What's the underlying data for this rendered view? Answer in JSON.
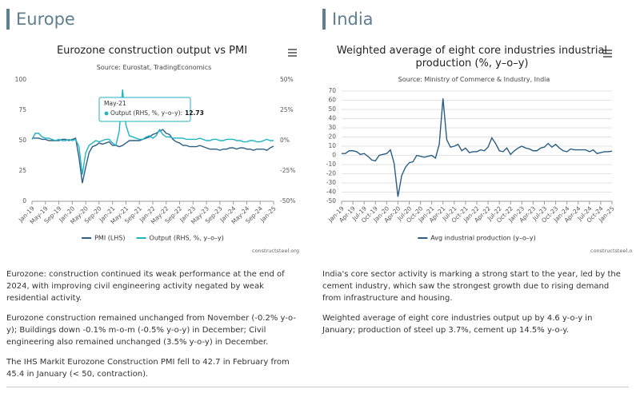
{
  "sections": [
    {
      "heading": "Europe",
      "paragraphs": [
        "Eurozone: construction continued its weak performance at the end of 2024, with improving civil engineering activity negated by weak residential activity.",
        "Eurozone construction remained unchanged from November (-0.2% y-o-y); Buildings down -0.1% m-o-m (-0.5% y-o-y) in December; Civil engineering also remained unchanged (3.5% y-o-y) in December.",
        "The IHS Markit Eurozone Construction PMI fell to 42.7 in February from 45.4 in January (< 50, contraction)."
      ]
    },
    {
      "heading": "India",
      "paragraphs": [
        "India's core sector activity is marking a strong start to the year, led by the cement industry, which saw the strongest growth due to rising demand from infrastructure and housing.",
        "Weighted average of eight core industries output up by 4.6 y-o-y in January; production of steel up 3.7%, cement up 14.5% y-o-y."
      ]
    }
  ],
  "chart_data": [
    {
      "type": "line",
      "title": "Eurozone construction output vs PMI",
      "subtitle": "Source: Eurostat, TradingEconomics",
      "credit": "constructsteel.org",
      "grid": false,
      "categories": [
        "Jan-19",
        null,
        null,
        null,
        "May-19",
        null,
        null,
        null,
        "Sep-19",
        null,
        null,
        null,
        "Jan-20",
        null,
        null,
        null,
        "May-20",
        null,
        null,
        null,
        "Sep-20",
        null,
        null,
        null,
        "Jan-21",
        null,
        null,
        null,
        "May-21",
        null,
        null,
        null,
        "Sep-21",
        null,
        null,
        null,
        "Jan-22",
        null,
        null,
        null,
        "May-22",
        null,
        null,
        null,
        "Sep-22",
        null,
        null,
        null,
        "Jan-23",
        null,
        null,
        null,
        "May-23",
        null,
        null,
        null,
        "Sep-23",
        null,
        null,
        null,
        "Jan-24",
        null,
        null,
        null,
        "May-24",
        null,
        null,
        null,
        "Sep-24",
        null,
        null,
        null,
        "Jan-25"
      ],
      "ylim": [
        0,
        100
      ],
      "yticks": [
        0,
        25,
        50,
        75,
        100
      ],
      "y2lim": [
        -50,
        50
      ],
      "y2ticks": [
        {
          "value": -50,
          "label": "-50%"
        },
        {
          "value": -25,
          "label": "-25%"
        },
        {
          "value": 0,
          "label": "0%"
        },
        {
          "value": 25,
          "label": "25%"
        },
        {
          "value": 50,
          "label": "50%"
        }
      ],
      "series": [
        {
          "name": "PMI (LHS)",
          "color": "#2c5f86",
          "values": [
            52,
            52,
            52,
            51,
            51,
            50,
            50,
            50,
            50,
            51,
            51,
            50,
            51,
            52,
            36,
            15,
            28,
            40,
            45,
            46,
            48,
            47,
            48,
            49,
            46,
            46,
            45,
            46,
            48,
            50,
            50,
            50,
            50,
            51,
            52,
            53,
            55,
            56,
            58,
            59,
            56,
            55,
            51,
            49,
            48,
            46,
            46,
            45,
            45,
            45,
            46,
            45,
            44,
            43,
            43,
            43,
            42,
            43,
            43,
            44,
            44,
            43,
            44,
            44,
            43,
            43,
            42,
            43,
            43,
            43,
            42,
            44,
            45.4
          ]
        },
        {
          "name": "Output (RHS, %, y–o–y)",
          "color": "#1fb3c4",
          "axis": "y2",
          "values": [
            1,
            6,
            6,
            3,
            2,
            2,
            1,
            0,
            1,
            0,
            0,
            1,
            0,
            1,
            -5,
            -28,
            -10,
            -4,
            -2,
            0,
            -1,
            0,
            1,
            1,
            -2,
            -4,
            8,
            42,
            12.73,
            4,
            3,
            2,
            1,
            1,
            3,
            4,
            2,
            4,
            9,
            5,
            3,
            3,
            2,
            2,
            2,
            2,
            1,
            1,
            1,
            1,
            2,
            1,
            0,
            0,
            1,
            1,
            0,
            0,
            1,
            1,
            1,
            0,
            0,
            -1,
            -1,
            0,
            0,
            -1,
            -1,
            0,
            1,
            0,
            0
          ]
        }
      ],
      "tooltip": {
        "label": "Output (RHS, %, y–o–y):"
      }
    },
    {
      "type": "line",
      "title": "Weighted average of eight core industries industrial production (%, y–o–y)",
      "subtitle": "Source: Ministry of Commerce & Industry, India",
      "credit": "constructsteel.org",
      "grid": true,
      "categories": [
        "Jan-19",
        null,
        null,
        "Apr-19",
        null,
        null,
        "Jul-19",
        null,
        null,
        "Oct-19",
        null,
        null,
        "Jan-20",
        null,
        null,
        "Apr-20",
        null,
        null,
        "Jul-20",
        null,
        null,
        "Oct-20",
        null,
        null,
        "Jan-21",
        null,
        null,
        "Apr-21",
        null,
        null,
        "Jul-21",
        null,
        null,
        "Oct-21",
        null,
        null,
        "Jan-22",
        null,
        null,
        "Apr-22",
        null,
        null,
        "Jul-22",
        null,
        null,
        "Oct-22",
        null,
        null,
        "Jan-23",
        null,
        null,
        "Apr-23",
        null,
        null,
        "Jul-23",
        null,
        null,
        "Oct-23",
        null,
        null,
        "Jan-24",
        null,
        null,
        "Apr-24",
        null,
        null,
        "Jul-24",
        null,
        null,
        "Oct-24",
        null,
        null,
        "Jan-25"
      ],
      "ylim": [
        -50,
        70
      ],
      "yticks": [
        -50,
        -40,
        -30,
        -20,
        -10,
        0,
        10,
        20,
        30,
        40,
        50,
        60,
        70
      ],
      "series": [
        {
          "name": "Avg industrial production (y–o–y)",
          "color": "#2a5d84",
          "values": [
            2,
            2,
            5,
            5,
            4,
            1,
            2,
            -1,
            -5,
            -6,
            0,
            1,
            2,
            6,
            -9,
            -45,
            -22,
            -13,
            -8,
            -7,
            0,
            -1,
            -2,
            -1,
            0,
            -3,
            12,
            62,
            17,
            9,
            10,
            12,
            5,
            8,
            3,
            4,
            4,
            6,
            5,
            9,
            19,
            13,
            5,
            4,
            8,
            1,
            5,
            8,
            10,
            8,
            7,
            5,
            5,
            8,
            9,
            13,
            9,
            12,
            8,
            5,
            4,
            7,
            6,
            6,
            6,
            6,
            4,
            6,
            2,
            3,
            4,
            4,
            4.6
          ]
        }
      ]
    }
  ]
}
